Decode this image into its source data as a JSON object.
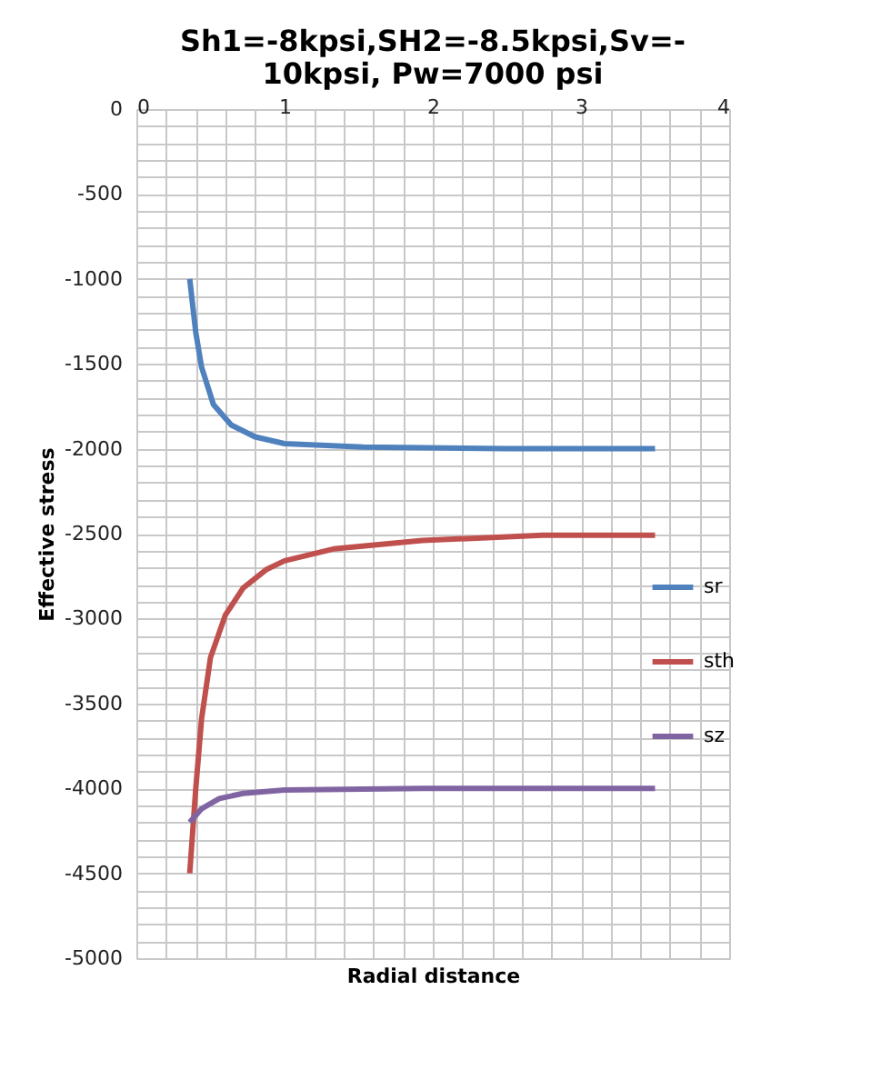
{
  "chart_data": {
    "type": "line",
    "title": [
      "Sh1=-8kpsi,SH2=-8.5kpsi,Sv=-",
      "10kpsi, Pw=7000 psi"
    ],
    "xlabel": "Radial distance",
    "ylabel": "Effective stress",
    "xlim": [
      0,
      4
    ],
    "ylim": [
      -5000,
      0
    ],
    "xticks": [
      0,
      {
        "value": 0.2,
        "label": null
      },
      {
        "value": 0.4,
        "label": null
      },
      {
        "value": 0.6,
        "label": null
      },
      {
        "value": 0.8,
        "label": null
      },
      1,
      {
        "value": 1.2,
        "label": null
      },
      {
        "value": 1.4,
        "label": null
      },
      {
        "value": 1.6,
        "label": null
      },
      {
        "value": 1.8,
        "label": null
      },
      2,
      {
        "value": 2.2,
        "label": null
      },
      {
        "value": 2.4,
        "label": null
      },
      {
        "value": 2.6,
        "label": null
      },
      {
        "value": 2.8,
        "label": null
      },
      3,
      {
        "value": 3.2,
        "label": null
      },
      {
        "value": 3.4,
        "label": null
      },
      {
        "value": 3.6,
        "label": null
      },
      {
        "value": 3.8,
        "label": null
      },
      4
    ],
    "yticks": [
      0,
      {
        "value": -100,
        "label": null
      },
      {
        "value": -200,
        "label": null
      },
      {
        "value": -300,
        "label": null
      },
      {
        "value": -400,
        "label": null
      },
      -500,
      {
        "value": -600,
        "label": null
      },
      {
        "value": -700,
        "label": null
      },
      {
        "value": -800,
        "label": null
      },
      {
        "value": -900,
        "label": null
      },
      -1000,
      {
        "value": -1100,
        "label": null
      },
      {
        "value": -1200,
        "label": null
      },
      {
        "value": -1300,
        "label": null
      },
      {
        "value": -1400,
        "label": null
      },
      -1500,
      {
        "value": -1600,
        "label": null
      },
      {
        "value": -1700,
        "label": null
      },
      {
        "value": -1800,
        "label": null
      },
      {
        "value": -1900,
        "label": null
      },
      -2000,
      {
        "value": -2100,
        "label": null
      },
      {
        "value": -2200,
        "label": null
      },
      {
        "value": -2300,
        "label": null
      },
      {
        "value": -2400,
        "label": null
      },
      -2500,
      {
        "value": -2600,
        "label": null
      },
      {
        "value": -2700,
        "label": null
      },
      {
        "value": -2800,
        "label": null
      },
      {
        "value": -2900,
        "label": null
      },
      -3000,
      {
        "value": -3100,
        "label": null
      },
      {
        "value": -3200,
        "label": null
      },
      {
        "value": -3300,
        "label": null
      },
      {
        "value": -3400,
        "label": null
      },
      -3500,
      {
        "value": -3600,
        "label": null
      },
      {
        "value": -3700,
        "label": null
      },
      {
        "value": -3800,
        "label": null
      },
      {
        "value": -3900,
        "label": null
      },
      -4000,
      {
        "value": -4100,
        "label": null
      },
      {
        "value": -4200,
        "label": null
      },
      {
        "value": -4300,
        "label": null
      },
      {
        "value": -4400,
        "label": null
      },
      -4500,
      {
        "value": -4600,
        "label": null
      },
      {
        "value": -4700,
        "label": null
      },
      {
        "value": -4800,
        "label": null
      },
      {
        "value": -4900,
        "label": null
      },
      -5000
    ],
    "grid": true,
    "legend": "right",
    "marker": "none",
    "line_style": "solid",
    "series": [
      {
        "name": "sr",
        "color": "#4f81bd",
        "x": [
          0.36,
          0.4,
          0.44,
          0.52,
          0.64,
          0.8,
          1.0,
          1.53,
          2.5,
          3.5
        ],
        "values": [
          -1000,
          -1310,
          -1520,
          -1740,
          -1860,
          -1930,
          -1970,
          -1990,
          -2000,
          -2000
        ]
      },
      {
        "name": "sth",
        "color": "#c0504d",
        "x": [
          0.36,
          0.4,
          0.44,
          0.5,
          0.6,
          0.72,
          0.88,
          1.0,
          1.33,
          1.93,
          2.74,
          3.5
        ],
        "values": [
          -4500,
          -4010,
          -3590,
          -3230,
          -2980,
          -2820,
          -2710,
          -2660,
          -2590,
          -2540,
          -2510,
          -2510
        ]
      },
      {
        "name": "sz",
        "color": "#8064a2",
        "x": [
          0.36,
          0.44,
          0.56,
          0.72,
          1.0,
          1.93,
          3.5
        ],
        "values": [
          -4200,
          -4120,
          -4060,
          -4030,
          -4010,
          -4000,
          -4000
        ]
      }
    ]
  }
}
